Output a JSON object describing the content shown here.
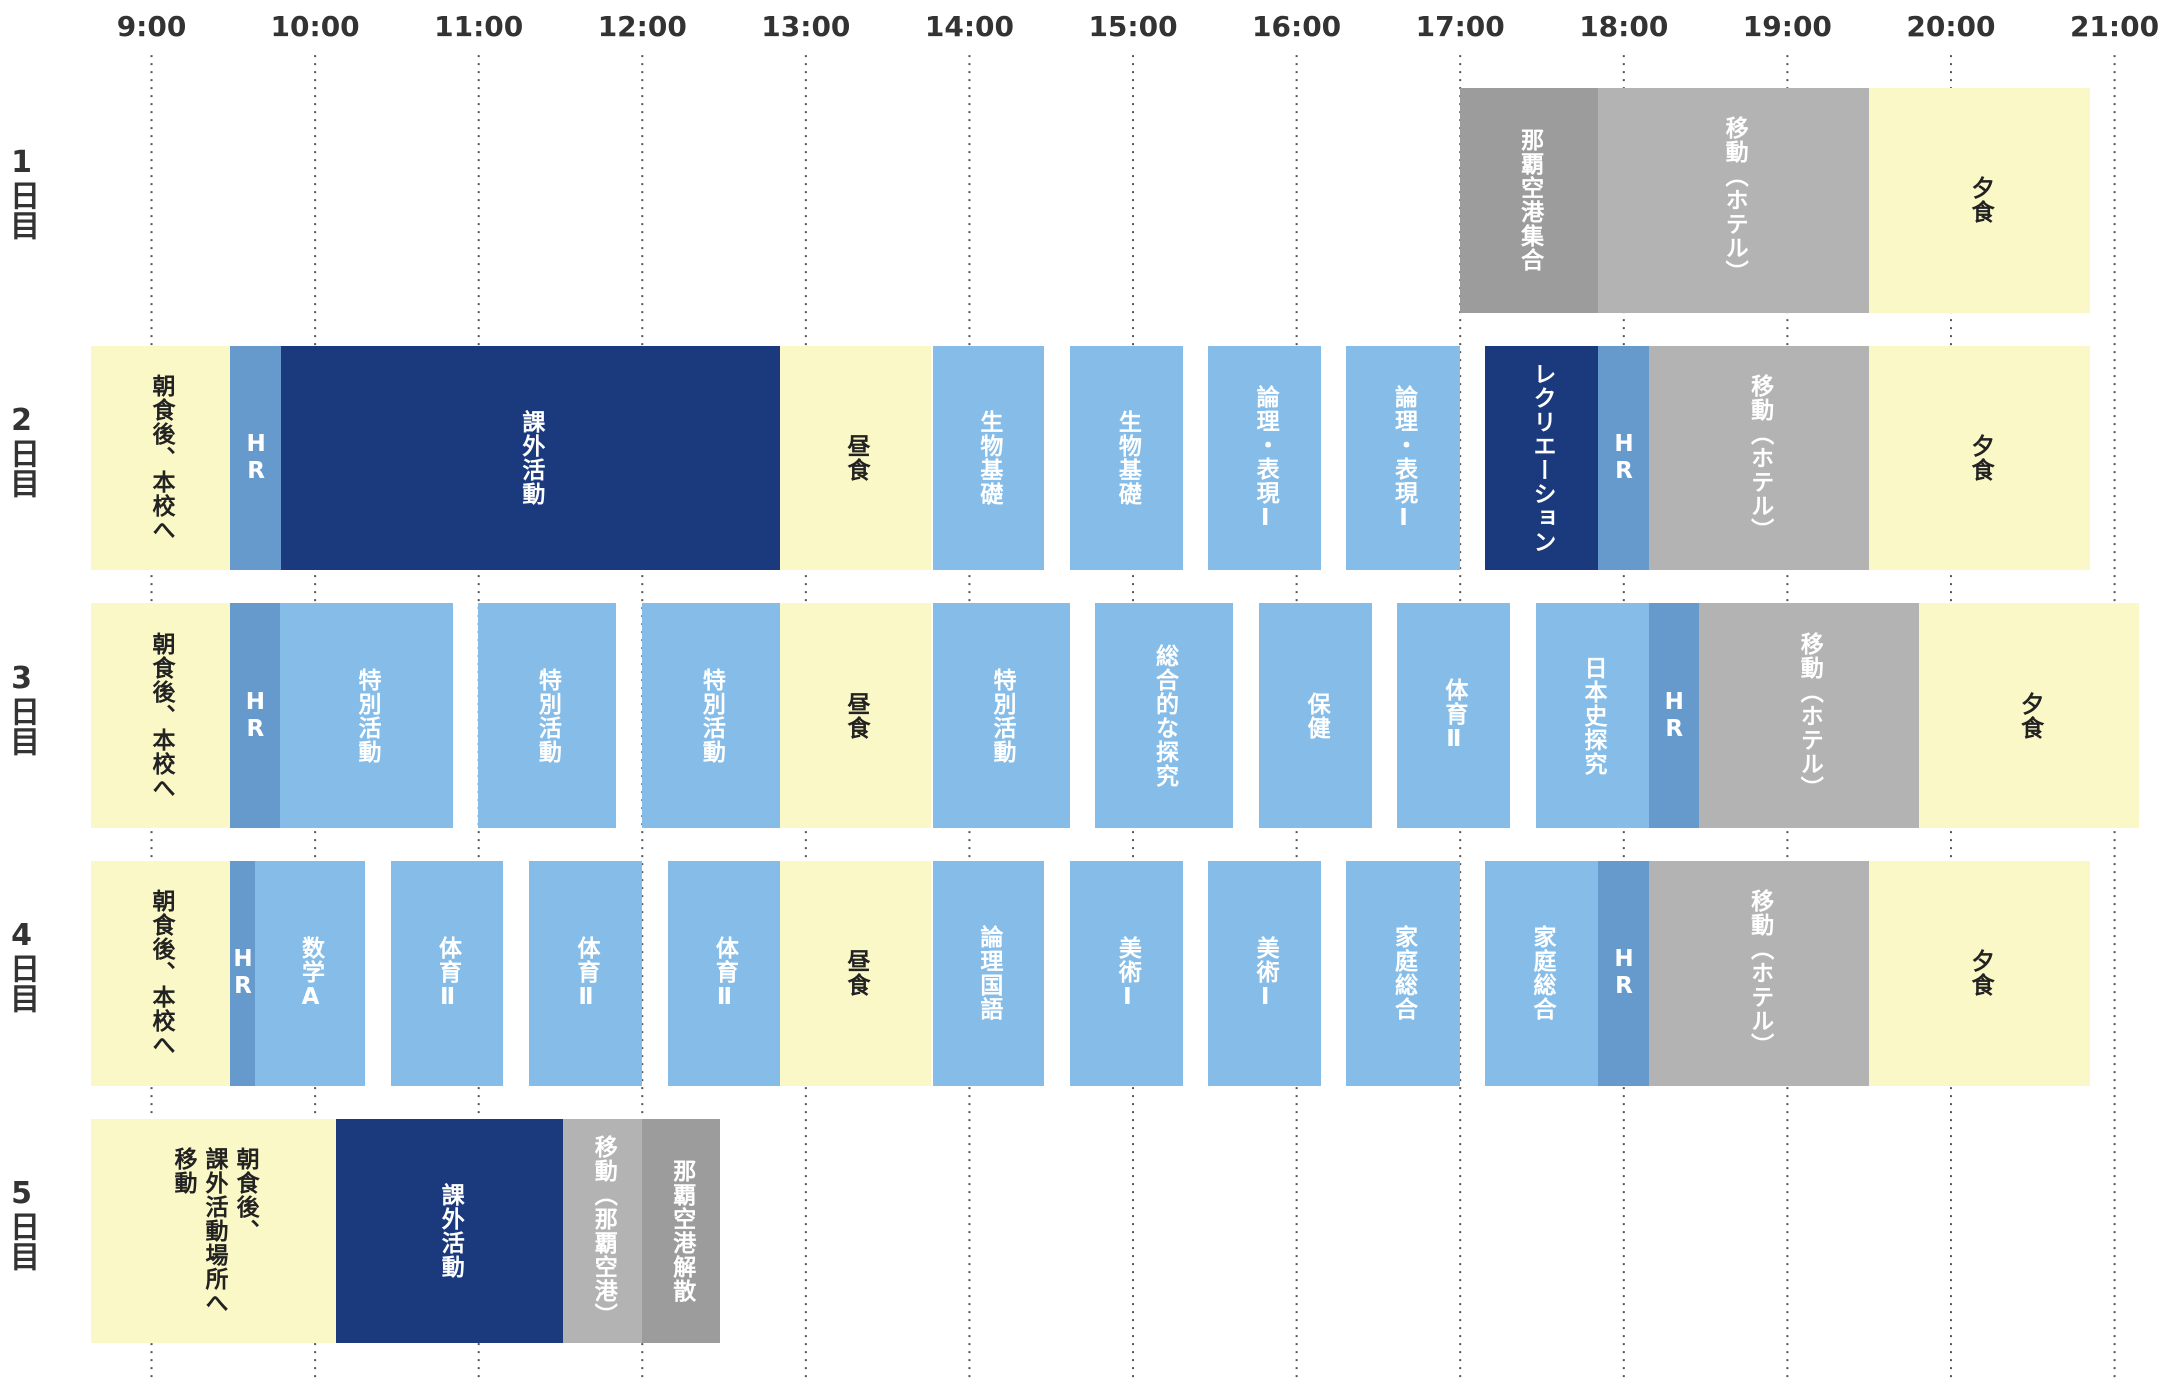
{
  "time_axis": {
    "labels": [
      "9:00",
      "10:00",
      "11:00",
      "12:00",
      "13:00",
      "14:00",
      "15:00",
      "16:00",
      "17:00",
      "18:00",
      "19:00",
      "20:00",
      "21:00"
    ]
  },
  "days": [
    {
      "label": "1日目",
      "blocks": [
        {
          "label": "那覇空港集合"
        },
        {
          "label": "移動（ホテル）"
        },
        {
          "label": "夕食"
        }
      ]
    },
    {
      "label": "2日目",
      "blocks": [
        {
          "label": "朝食後、本校へ"
        },
        {
          "label": "HR"
        },
        {
          "label": "課外活動"
        },
        {
          "label": "昼食"
        },
        {
          "label": "生物基礎"
        },
        {
          "label": "生物基礎"
        },
        {
          "label": "論理・表現Ⅰ"
        },
        {
          "label": "論理・表現Ⅰ"
        },
        {
          "label": "レクリエーション"
        },
        {
          "label": "HR"
        },
        {
          "label": "移動（ホテル）"
        },
        {
          "label": "夕食"
        }
      ]
    },
    {
      "label": "3日目",
      "blocks": [
        {
          "label": "朝食後、本校へ"
        },
        {
          "label": "HR"
        },
        {
          "label": "特別活動"
        },
        {
          "label": "特別活動"
        },
        {
          "label": "特別活動"
        },
        {
          "label": "昼食"
        },
        {
          "label": "特別活動"
        },
        {
          "label": "総合的な探究"
        },
        {
          "label": "保健"
        },
        {
          "label": "体育Ⅱ"
        },
        {
          "label": "日本史探究"
        },
        {
          "label": "HR"
        },
        {
          "label": "移動（ホテル）"
        },
        {
          "label": "夕食"
        }
      ]
    },
    {
      "label": "4日目",
      "blocks": [
        {
          "label": "朝食後、本校へ"
        },
        {
          "label": "HR"
        },
        {
          "label": "数学A"
        },
        {
          "label": "体育Ⅱ"
        },
        {
          "label": "体育Ⅱ"
        },
        {
          "label": "体育Ⅱ"
        },
        {
          "label": "昼食"
        },
        {
          "label": "論理国語"
        },
        {
          "label": "美術Ⅰ"
        },
        {
          "label": "美術Ⅰ"
        },
        {
          "label": "家庭総合"
        },
        {
          "label": "家庭総合"
        },
        {
          "label": "HR"
        },
        {
          "label": "移動（ホテル）"
        },
        {
          "label": "夕食"
        }
      ]
    },
    {
      "label": "5日目",
      "blocks": [
        {
          "label": "朝食後、\n課外活動場所へ\n移動"
        },
        {
          "label": "課外活動"
        },
        {
          "label": "移動（那覇空港）"
        },
        {
          "label": "那覇空港解散"
        }
      ]
    }
  ]
}
